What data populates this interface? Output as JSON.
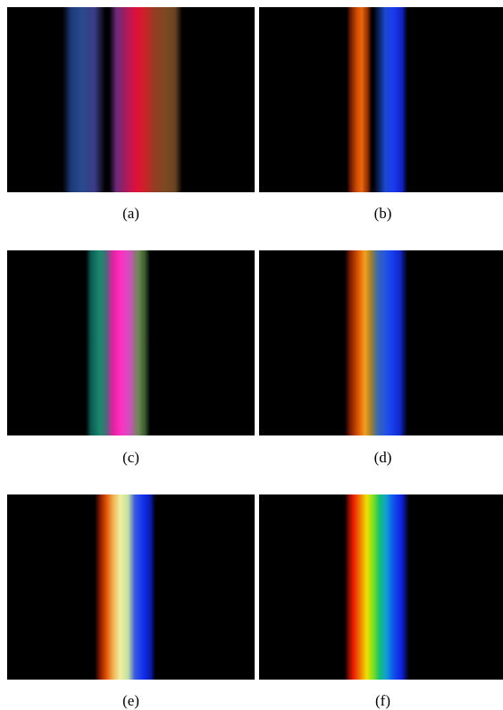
{
  "captions": {
    "a": "(a)",
    "b": "(b)",
    "c": "(c)",
    "d": "(d)",
    "e": "(e)",
    "f": "(f)"
  },
  "colors": {
    "background": "#000000",
    "page": "#ffffff"
  }
}
